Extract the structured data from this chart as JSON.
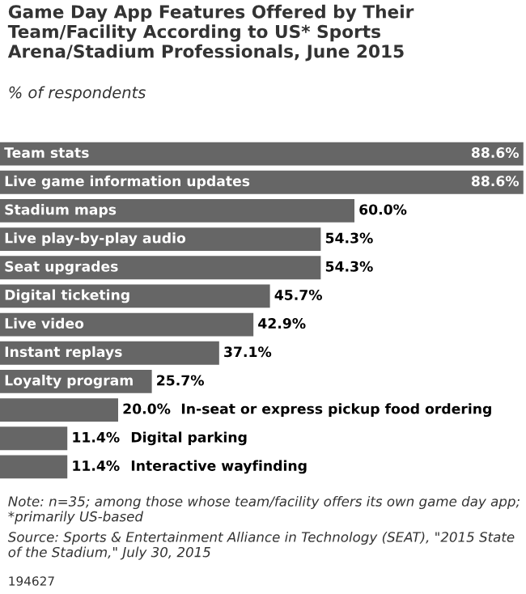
{
  "chart_data": {
    "type": "bar",
    "orientation": "horizontal",
    "title": "Game Day App Features Offered by Their Team/Facility According to US* Sports Arena/Stadium Professionals, June 2015",
    "subtitle": "% of respondents",
    "categories": [
      "Team stats",
      "Live game information updates",
      "Stadium maps",
      "Live play-by-play audio",
      "Seat upgrades",
      "Digital ticketing",
      "Live video",
      "Instant replays",
      "Loyalty program",
      "In-seat or express pickup food ordering",
      "Digital parking",
      "Interactive wayfinding"
    ],
    "values": [
      88.6,
      88.6,
      60.0,
      54.3,
      54.3,
      45.7,
      42.9,
      37.1,
      25.7,
      20.0,
      11.4,
      11.4
    ],
    "value_labels": [
      "88.6%",
      "88.6%",
      "60.0%",
      "54.3%",
      "54.3%",
      "45.7%",
      "42.9%",
      "37.1%",
      "25.7%",
      "20.0%",
      "11.4%",
      "11.4%"
    ],
    "color": "#666666",
    "annotations": [
      "Note: n=35; among those whose team/facility offers its own game day app; *primarily US-based",
      "Source: Sports & Entertainment Alliance in Technology (SEAT), \"2015 State of the Stadium,\" July 30, 2015",
      "194627"
    ]
  }
}
